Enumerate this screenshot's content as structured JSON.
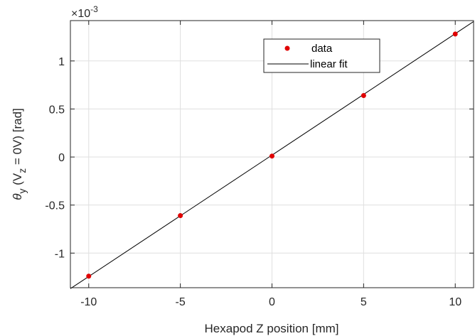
{
  "chart_data": {
    "type": "scatter",
    "xlabel": "Hexapod Z position [mm]",
    "ylabel_parts": {
      "symbol": "θ",
      "symbol_sub": "y",
      "open": " (V",
      "v_sub": "z",
      "rest": " = 0V) [rad]"
    },
    "y_exponent_prefix": "×10",
    "y_exponent_power": "-3",
    "xlim": [
      -11,
      11
    ],
    "ylim": [
      -1.36,
      1.42
    ],
    "y_scale_note": "y values in units of 1e-3 rad",
    "x_ticks": [
      -10,
      -5,
      0,
      5,
      10
    ],
    "x_tick_labels": [
      "-10",
      "-5",
      "0",
      "5",
      "10"
    ],
    "y_ticks": [
      -1,
      -0.5,
      0,
      0.5,
      1
    ],
    "y_tick_labels": [
      "-1",
      "-0.5",
      "0",
      "0.5",
      "1"
    ],
    "grid": true,
    "legend_position": "top-right",
    "series": [
      {
        "name": "data",
        "kind": "markers",
        "color": "#e00000",
        "x": [
          -10,
          -5,
          0,
          5,
          10
        ],
        "y": [
          -1.24,
          -0.61,
          0.01,
          0.64,
          1.28
        ]
      },
      {
        "name": "linear fit",
        "kind": "line",
        "color": "#000000",
        "x": [
          -11,
          11
        ],
        "y": [
          -1.37,
          1.41
        ]
      }
    ]
  }
}
